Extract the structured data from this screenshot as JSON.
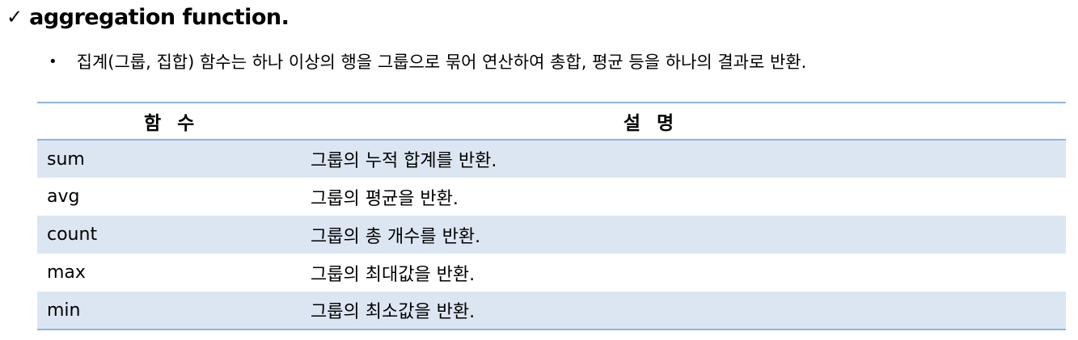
{
  "heading": {
    "check": "✓",
    "text": "aggregation function."
  },
  "bullet": {
    "dot": "•",
    "text": "집계(그룹, 집합) 함수는 하나 이상의 행을 그룹으로 묶어 연산하여 총합, 평균 등을 하나의 결과로 반환."
  },
  "table": {
    "headers": [
      "함 수",
      "설 명"
    ],
    "rows": [
      {
        "func": "sum",
        "desc": "그룹의 누적 합계를 반환."
      },
      {
        "func": "avg",
        "desc": "그룹의 평균을 반환."
      },
      {
        "func": "count",
        "desc": "그룹의 총 개수를 반환."
      },
      {
        "func": "max",
        "desc": "그룹의 최대값을 반환."
      },
      {
        "func": "min",
        "desc": "그룹의 최소값을 반환."
      }
    ],
    "colors": {
      "stripe": "#dce6f3",
      "border": "#8eb4de"
    }
  }
}
